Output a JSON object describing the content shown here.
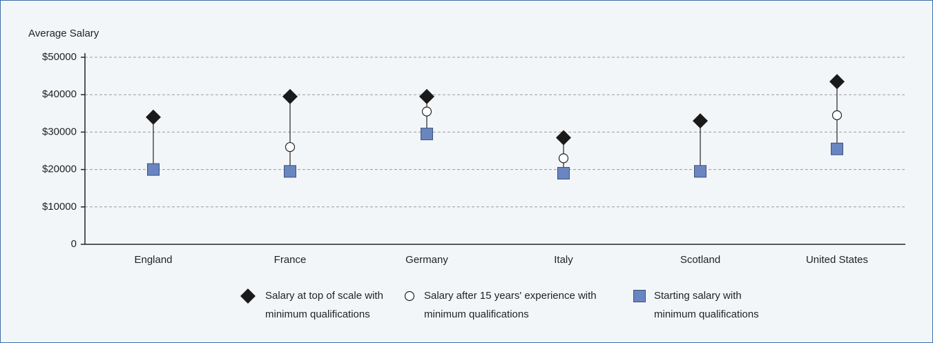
{
  "chart_data": {
    "type": "dot",
    "ylabel": "Average Salary",
    "categories": [
      "England",
      "France",
      "Germany",
      "Italy",
      "Scotland",
      "United States"
    ],
    "series": [
      {
        "name": "Salary at top of scale with minimum qualifications",
        "color": "#1a1a1a",
        "marker": "diamond",
        "values": [
          34000,
          39500,
          39500,
          28500,
          33000,
          43500
        ]
      },
      {
        "name": "Salary after 15 years' experience with minimum qualifications",
        "color": "#ffffff",
        "marker": "circle",
        "values": [
          34000,
          26000,
          35500,
          23000,
          33000,
          34500
        ]
      },
      {
        "name": "Starting salary with minimum qualifications",
        "color": "#6a86c0",
        "marker": "square",
        "values": [
          20000,
          19500,
          29500,
          19000,
          19500,
          25500
        ]
      }
    ],
    "ylim": [
      0,
      50000
    ],
    "yticks": [
      0,
      {
        "value": 10000,
        "label": "$10000"
      },
      {
        "value": 20000,
        "label": "$20000"
      },
      {
        "value": 30000,
        "label": "$30000"
      },
      {
        "value": 40000,
        "label": "$40000"
      },
      {
        "value": 50000,
        "label": "$50000"
      }
    ],
    "grid": true
  }
}
